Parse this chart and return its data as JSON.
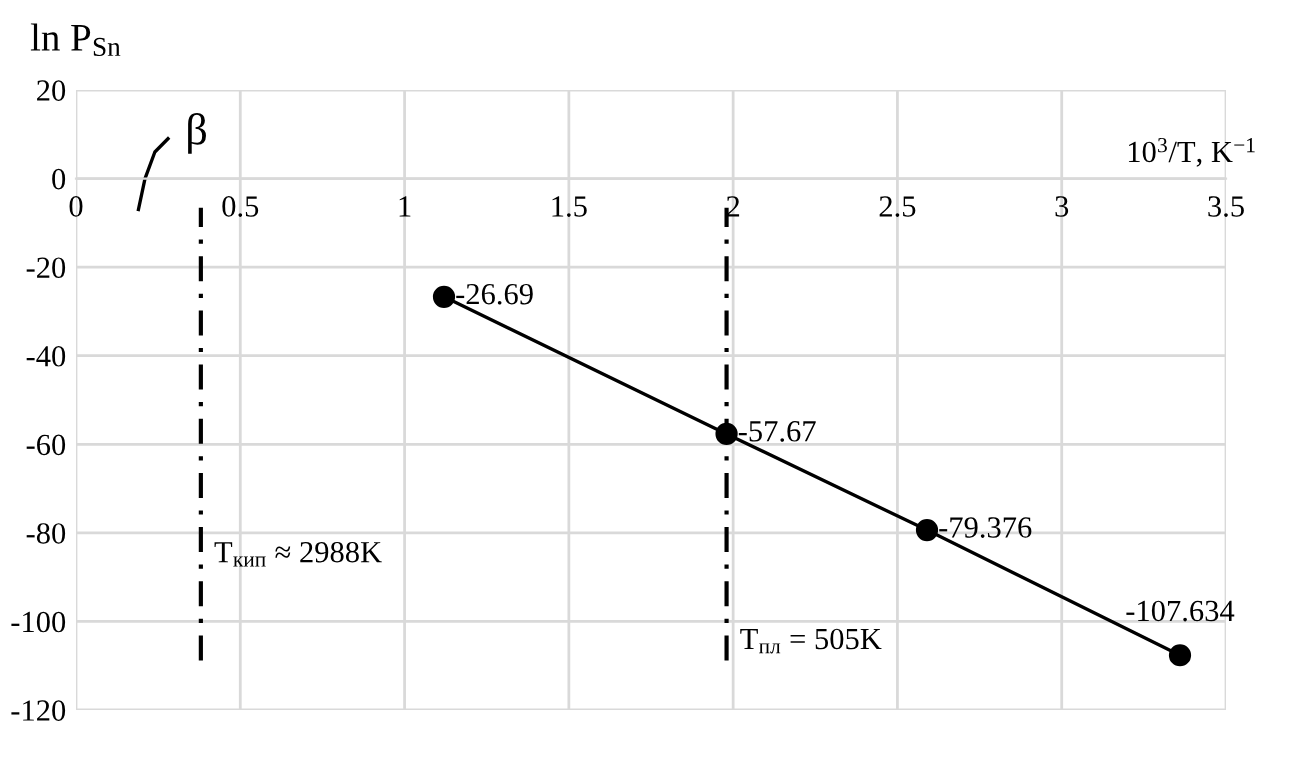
{
  "chart_data": {
    "type": "line",
    "xlabel": "10$^{3}$/T, K$^{−1}$",
    "ylabel": "ln P$_{Sn}$",
    "x": [
      1.12,
      1.98,
      2.59,
      3.36
    ],
    "series": [
      {
        "color": "#000000",
        "values": [
          -26.69,
          -57.67,
          -79.376,
          -107.634
        ]
      }
    ],
    "marker": "circle",
    "line_style": "solid",
    "data_labels": true,
    "xlim": [
      0,
      3.5
    ],
    "xticks": [
      0,
      0.5,
      1,
      1.5,
      2,
      2.5,
      3,
      3.5
    ],
    "ylim": [
      -120,
      20
    ],
    "yticks": [
      -120,
      -100,
      -80,
      -60,
      -40,
      -20,
      0,
      20
    ],
    "grid": true,
    "ref_lines": [
      {
        "axis": "x",
        "value": 0.38,
        "color": "#000000",
        "line_style": "dashed"
      },
      {
        "axis": "x",
        "value": 1.98,
        "color": "#000000",
        "line_style": "dashed"
      }
    ],
    "annotations": [
      "β",
      "T$_{кип}$ ≈ 2988K",
      "T$_{пл}$ = 505K"
    ]
  }
}
